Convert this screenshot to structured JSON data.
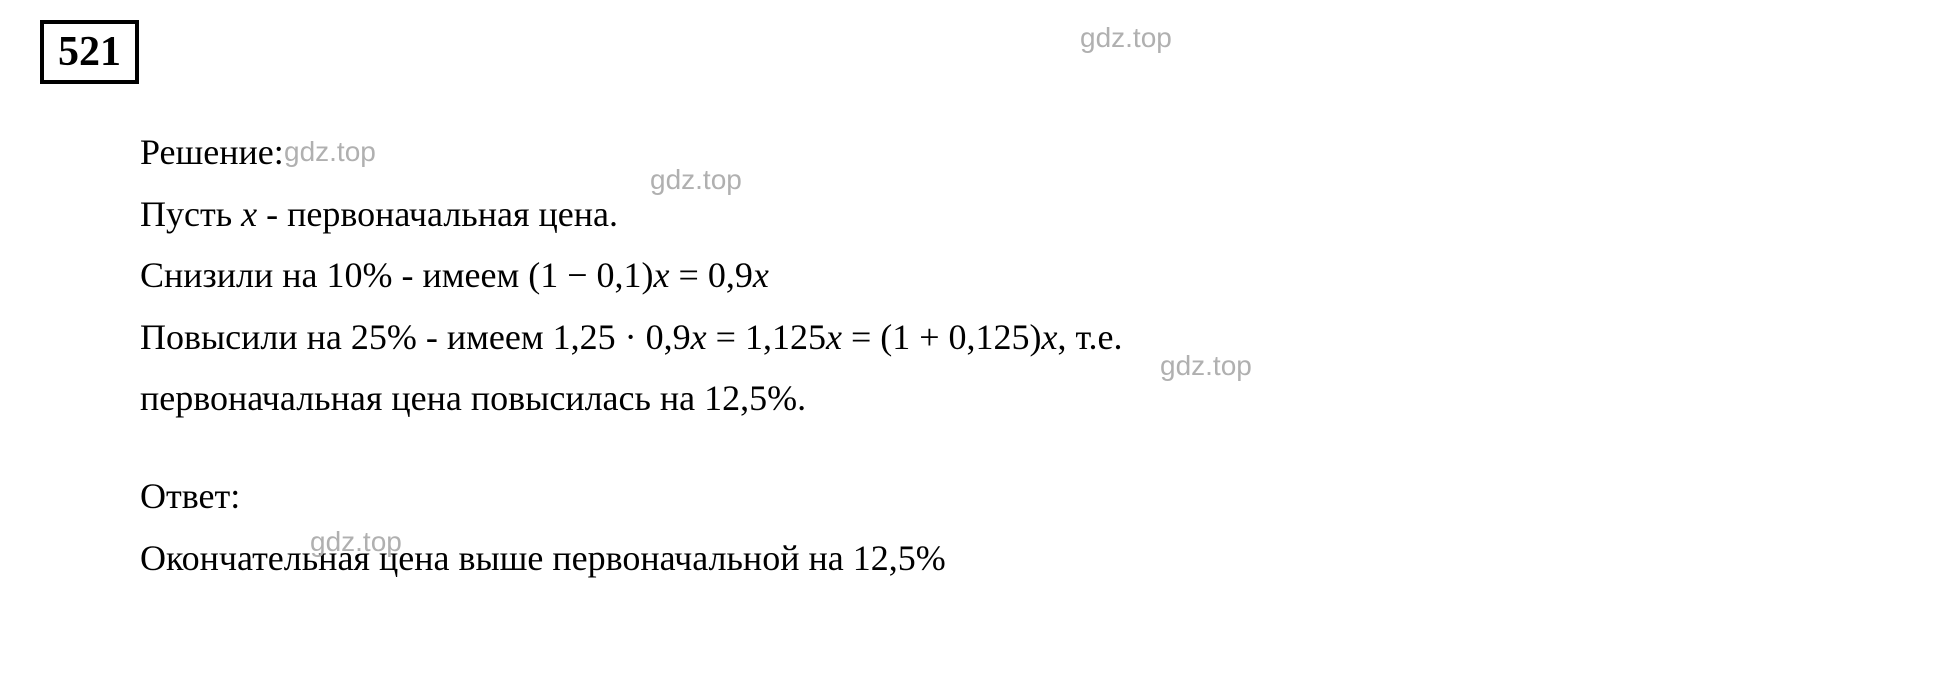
{
  "problemNumber": "521",
  "solution": {
    "label": "Решение:",
    "line1_prefix": "Пусть ",
    "line1_var": "x",
    "line1_suffix": " - первоначальная цена.",
    "line2_prefix": "Снизили на 10% - имеем (1 − 0,1)",
    "line2_var1": "x",
    "line2_mid": " = 0,9",
    "line2_var2": "x",
    "line3_prefix": "Повысили на 25% - имеем 1,25 · 0,9",
    "line3_var1": "x",
    "line3_mid1": " = 1,125",
    "line3_var2": "x",
    "line3_mid2": " = (1 + 0,125)",
    "line3_var3": "x",
    "line3_suffix": ", т.е.",
    "line4": "первоначальная цена повысилась на 12,5%."
  },
  "answer": {
    "label": "Ответ:",
    "text": "Окончательная цена выше первоначальной на 12,5%"
  },
  "watermark": "gdz.top",
  "styling": {
    "background_color": "#ffffff",
    "text_color": "#000000",
    "watermark_color": "#b0b0b0",
    "border_color": "#000000",
    "font_family": "Georgia, Times New Roman, serif",
    "body_fontsize": 36,
    "number_fontsize": 42,
    "watermark_fontsize": 28,
    "border_width": 4
  }
}
